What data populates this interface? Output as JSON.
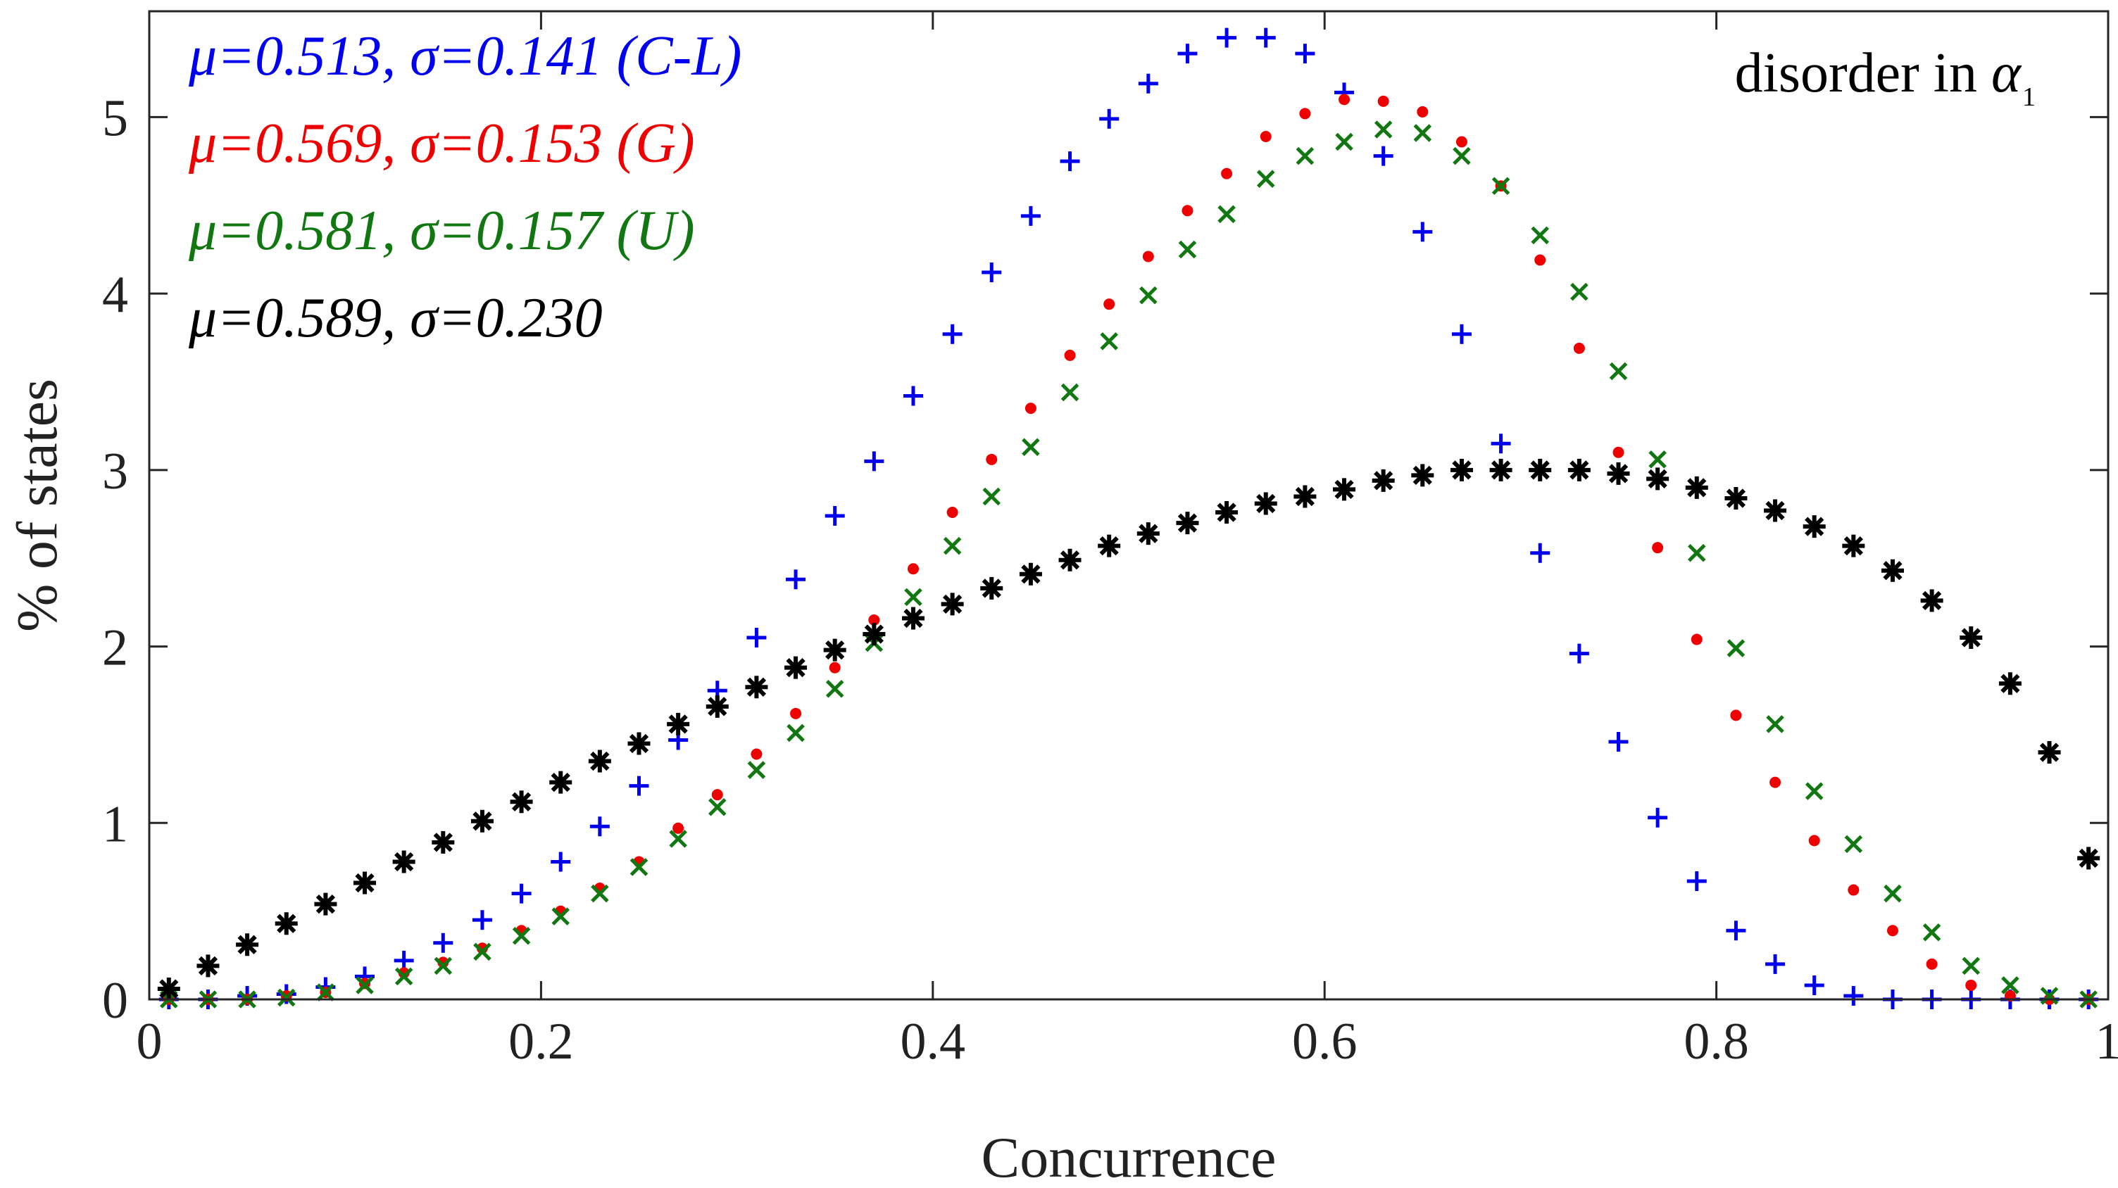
{
  "chart_data": {
    "type": "scatter",
    "xlabel": "Concurrence",
    "ylabel": "% of states",
    "xlim": [
      0,
      1
    ],
    "ylim": [
      0,
      5.6
    ],
    "xticks": [
      0,
      0.2,
      0.4,
      0.6,
      0.8,
      1
    ],
    "xtick_labels": [
      "0",
      "0.2",
      "0.4",
      "0.6",
      "0.8",
      "1"
    ],
    "yticks": [
      0,
      1,
      2,
      3,
      4,
      5
    ],
    "ytick_labels": [
      "0",
      "1",
      "2",
      "3",
      "4",
      "5"
    ],
    "grid": false,
    "legend_placement": "top-left",
    "annotation": {
      "text": "disorder in ",
      "symbol": "α",
      "subscript": "1"
    },
    "x": [
      0.01,
      0.03,
      0.05,
      0.07,
      0.09,
      0.11,
      0.13,
      0.15,
      0.17,
      0.19,
      0.21,
      0.23,
      0.25,
      0.27,
      0.29,
      0.31,
      0.33,
      0.35,
      0.37,
      0.39,
      0.41,
      0.43,
      0.45,
      0.47,
      0.49,
      0.51,
      0.53,
      0.55,
      0.57,
      0.59,
      0.61,
      0.63,
      0.65,
      0.67,
      0.69,
      0.71,
      0.73,
      0.75,
      0.77,
      0.79,
      0.81,
      0.83,
      0.85,
      0.87,
      0.89,
      0.91,
      0.93,
      0.95,
      0.97,
      0.99
    ],
    "series": [
      {
        "name": "μ=0.513, σ=0.141 (C-L)",
        "color": "#0000ee",
        "marker": "plus",
        "values": [
          0,
          0,
          0.02,
          0.03,
          0.07,
          0.13,
          0.22,
          0.32,
          0.45,
          0.6,
          0.78,
          0.98,
          1.21,
          1.47,
          1.75,
          2.05,
          2.38,
          2.74,
          3.05,
          3.42,
          3.77,
          4.12,
          4.44,
          4.75,
          4.99,
          5.19,
          5.36,
          5.45,
          5.45,
          5.36,
          5.14,
          4.78,
          4.35,
          3.77,
          3.15,
          2.53,
          1.96,
          1.46,
          1.03,
          0.67,
          0.39,
          0.2,
          0.08,
          0.02,
          0,
          0,
          0,
          0,
          0,
          0
        ]
      },
      {
        "name": "μ=0.569, σ=0.153 (G)",
        "color": "#ee0000",
        "marker": "dot",
        "values": [
          0,
          0,
          0,
          0.02,
          0.04,
          0.09,
          0.15,
          0.21,
          0.29,
          0.39,
          0.5,
          0.63,
          0.78,
          0.97,
          1.16,
          1.39,
          1.62,
          1.88,
          2.15,
          2.44,
          2.76,
          3.06,
          3.35,
          3.65,
          3.94,
          4.21,
          4.47,
          4.68,
          4.89,
          5.02,
          5.1,
          5.09,
          5.03,
          4.86,
          4.61,
          4.19,
          3.69,
          3.1,
          2.56,
          2.04,
          1.61,
          1.23,
          0.9,
          0.62,
          0.39,
          0.2,
          0.08,
          0.02,
          0,
          0
        ]
      },
      {
        "name": "μ=0.581, σ=0.157 (U)",
        "color": "#117711",
        "marker": "x",
        "values": [
          0,
          0,
          0,
          0.01,
          0.04,
          0.08,
          0.13,
          0.19,
          0.27,
          0.36,
          0.47,
          0.6,
          0.75,
          0.91,
          1.09,
          1.3,
          1.51,
          1.76,
          2.02,
          2.28,
          2.57,
          2.85,
          3.13,
          3.44,
          3.73,
          3.99,
          4.25,
          4.45,
          4.65,
          4.78,
          4.86,
          4.93,
          4.91,
          4.78,
          4.61,
          4.33,
          4.01,
          3.56,
          3.06,
          2.53,
          1.99,
          1.56,
          1.18,
          0.88,
          0.6,
          0.38,
          0.19,
          0.08,
          0.02,
          0
        ]
      },
      {
        "name": "μ=0.589, σ=0.230",
        "color": "#000000",
        "marker": "asterisk",
        "values": [
          0.06,
          0.19,
          0.31,
          0.43,
          0.54,
          0.66,
          0.78,
          0.89,
          1.01,
          1.12,
          1.23,
          1.35,
          1.45,
          1.56,
          1.66,
          1.77,
          1.88,
          1.98,
          2.07,
          2.16,
          2.24,
          2.33,
          2.41,
          2.49,
          2.57,
          2.64,
          2.7,
          2.76,
          2.81,
          2.85,
          2.89,
          2.94,
          2.97,
          3.0,
          3.0,
          3.0,
          3.0,
          2.98,
          2.95,
          2.9,
          2.84,
          2.77,
          2.68,
          2.57,
          2.43,
          2.26,
          2.05,
          1.79,
          1.4,
          0.8
        ]
      }
    ]
  }
}
